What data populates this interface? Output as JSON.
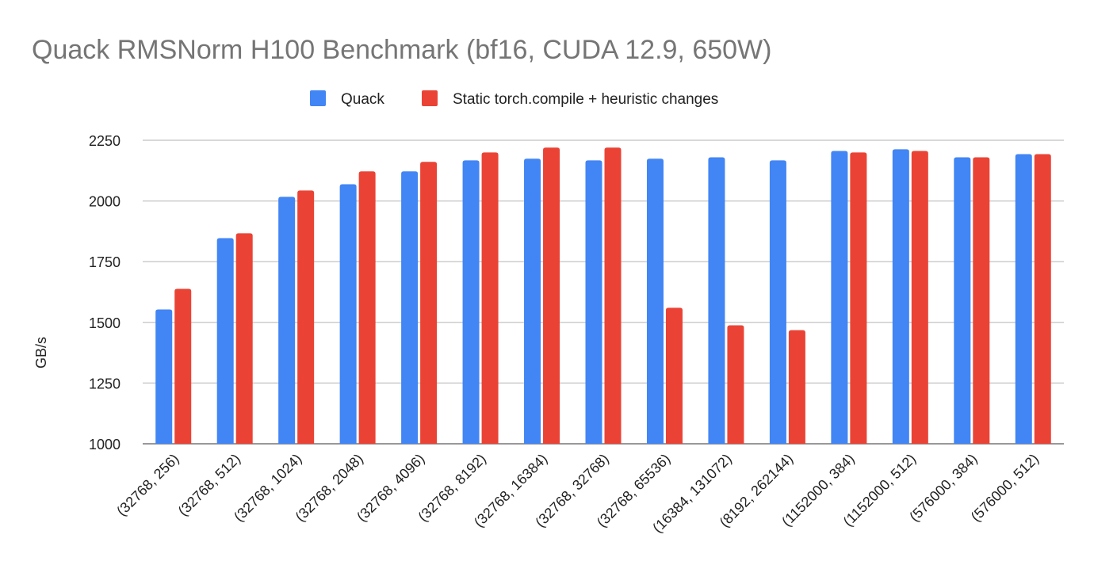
{
  "chart_data": {
    "type": "bar",
    "title": "Quack RMSNorm H100 Benchmark (bf16, CUDA 12.9, 650W)",
    "xlabel": "",
    "ylabel": "GB/s",
    "ylim": [
      1000,
      2250
    ],
    "yticks": [
      1000,
      1250,
      1500,
      1750,
      2000,
      2250
    ],
    "grid": true,
    "legend_position": "top",
    "categories": [
      "(32768, 256)",
      "(32768, 512)",
      "(32768, 1024)",
      "(32768, 2048)",
      "(32768, 4096)",
      "(32768, 8192)",
      "(32768, 16384)",
      "(32768, 32768)",
      "(32768, 65536)",
      "(16384, 131072)",
      "(8192, 262144)",
      "(1152000, 384)",
      "(1152000, 512)",
      "(576000, 384)",
      "(576000, 512)"
    ],
    "series": [
      {
        "name": "Quack",
        "color": "#4285f4",
        "values": [
          1553,
          1847,
          2017,
          2069,
          2122,
          2167,
          2174,
          2167,
          2174,
          2180,
          2167,
          2206,
          2213,
          2180,
          2193
        ]
      },
      {
        "name": "Static torch.compile + heuristic changes",
        "color": "#ea4335",
        "values": [
          1638,
          1867,
          2043,
          2122,
          2161,
          2200,
          2220,
          2220,
          1560,
          1488,
          1468,
          2200,
          2206,
          2180,
          2193
        ]
      }
    ]
  }
}
